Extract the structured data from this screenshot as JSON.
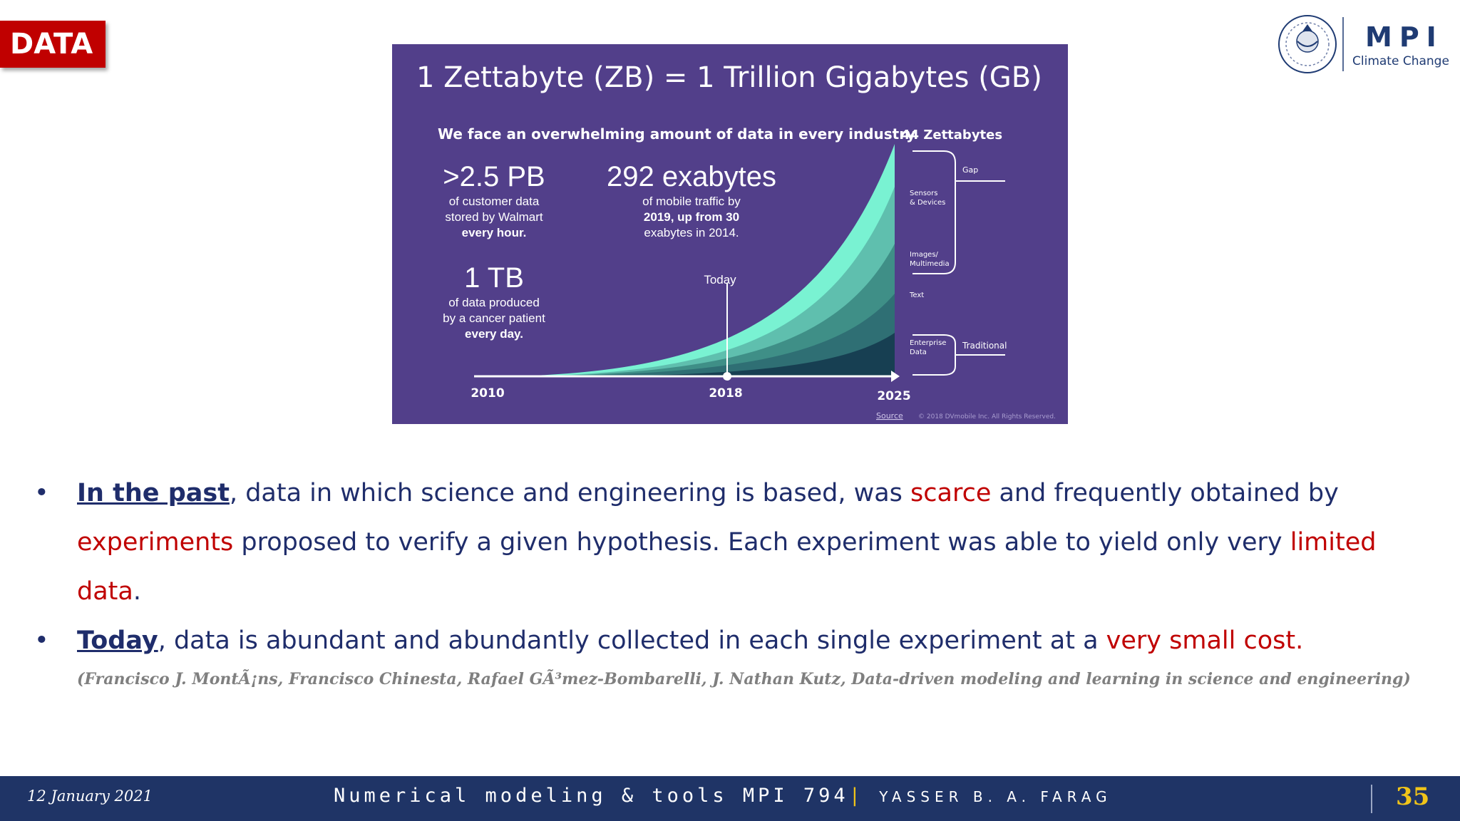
{
  "slide": {
    "section_tag": "DATA",
    "logo": {
      "name": "MPI",
      "subtitle": "Climate Change"
    },
    "footer": {
      "date": "12 January 2021",
      "course": "Numerical modeling & tools MPI 794",
      "separator": "|",
      "author": "YASSER B. A. FARAG",
      "page": "35"
    }
  },
  "infographic": {
    "title": "1 Zettabyte (ZB) = 1 Trillion Gigabytes (GB)",
    "subtitle": "We face an overwhelming amount of data in every industry",
    "peak_label": "44 Zettabytes",
    "stats": [
      {
        "value": ">2.5 PB",
        "lines": [
          "of customer data",
          "stored by Walmart",
          "every hour."
        ]
      },
      {
        "value": "292 exabytes",
        "lines": [
          "of mobile traffic by",
          "2019, up from 30",
          "exabytes in 2014."
        ]
      },
      {
        "value": "1 TB",
        "lines": [
          "of data produced",
          "by a cancer patient",
          "every day."
        ]
      }
    ],
    "today_label": "Today",
    "years": [
      "2010",
      "2018",
      "2025"
    ],
    "layer_labels": {
      "gap": "Gap",
      "sensors": [
        "Sensors",
        "& Devices"
      ],
      "images": [
        "Images/",
        "Multimedia"
      ],
      "text": "Text",
      "enterprise": [
        "Enterprise",
        "Data"
      ],
      "traditional": "Traditional"
    },
    "source": "Source",
    "copyright": "© 2018 DVmobile Inc. All Rights Reserved.",
    "colors": {
      "background": "#523f8a",
      "layer1": "#79f2d2",
      "layer2": "#3f8f87",
      "layer3": "#2f6f74",
      "layer4": "#173f52"
    }
  },
  "bullets": [
    {
      "lead": "In the past",
      "text_1": ", data in which science and engineering is based, was ",
      "hl_1": "scarce",
      "text_2": " and frequently obtained by ",
      "hl_2": "experiments",
      "text_3": " proposed to verify a given hypothesis. Each experiment was able to yield only very ",
      "hl_3": "limited data",
      "text_4": "."
    },
    {
      "lead": "Today",
      "text_1": ", data is abundant and abundantly collected in each single experiment at a ",
      "hl_1": "very small cost."
    }
  ],
  "reference": "(Francisco J. MontÃ¡ns, Francisco Chinesta, Rafael GÃ³mez-Bombarelli, J. Nathan Kutz, Data-driven modeling and learning in science and engineering)"
}
